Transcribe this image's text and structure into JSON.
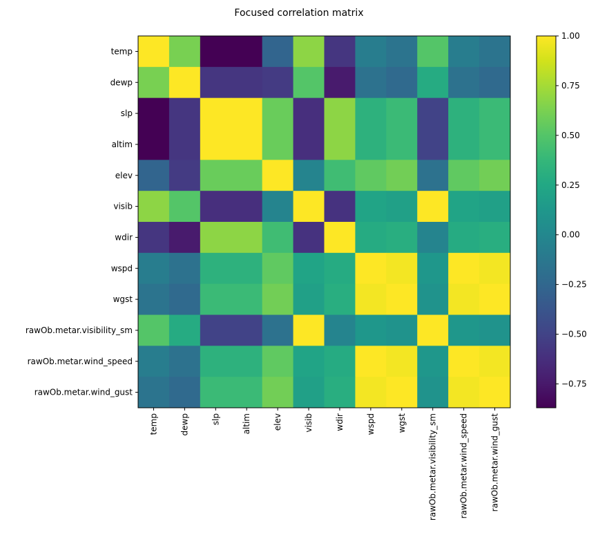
{
  "chart_data": {
    "type": "heatmap",
    "title": "Focused correlation matrix",
    "xlabel": "",
    "ylabel": "",
    "colormap": "viridis",
    "vmin": -0.87,
    "vmax": 1.0,
    "labels": [
      "temp",
      "dewp",
      "slp",
      "altim",
      "elev",
      "visib",
      "wdir",
      "wspd",
      "wgst",
      "rawOb.metar.visibility_sm",
      "rawOb.metar.wind_speed",
      "rawOb.metar.wind_gust"
    ],
    "matrix": [
      [
        1.0,
        0.62,
        -0.87,
        -0.87,
        -0.27,
        0.68,
        -0.58,
        -0.08,
        -0.15,
        0.5,
        -0.08,
        -0.15
      ],
      [
        0.62,
        1.0,
        -0.58,
        -0.58,
        -0.55,
        0.5,
        -0.74,
        -0.17,
        -0.23,
        0.28,
        -0.17,
        -0.23
      ],
      [
        -0.87,
        -0.58,
        1.0,
        1.0,
        0.57,
        -0.62,
        0.68,
        0.33,
        0.4,
        -0.5,
        0.33,
        0.4
      ],
      [
        -0.87,
        -0.58,
        1.0,
        1.0,
        0.57,
        -0.62,
        0.68,
        0.33,
        0.4,
        -0.5,
        0.33,
        0.4
      ],
      [
        -0.27,
        -0.55,
        0.57,
        0.57,
        1.0,
        -0.03,
        0.42,
        0.54,
        0.6,
        -0.17,
        0.54,
        0.6
      ],
      [
        0.68,
        0.5,
        -0.62,
        -0.62,
        -0.03,
        1.0,
        -0.6,
        0.22,
        0.19,
        1.0,
        0.22,
        0.19
      ],
      [
        -0.58,
        -0.74,
        0.68,
        0.68,
        0.42,
        -0.6,
        1.0,
        0.28,
        0.3,
        -0.03,
        0.28,
        0.3
      ],
      [
        -0.08,
        -0.17,
        0.33,
        0.33,
        0.54,
        0.22,
        0.28,
        1.0,
        0.97,
        0.12,
        1.0,
        0.97
      ],
      [
        -0.15,
        -0.23,
        0.4,
        0.4,
        0.6,
        0.19,
        0.3,
        0.97,
        1.0,
        0.09,
        0.97,
        1.0
      ],
      [
        0.5,
        0.28,
        -0.5,
        -0.5,
        -0.17,
        1.0,
        -0.03,
        0.12,
        0.09,
        1.0,
        0.12,
        0.09
      ],
      [
        -0.08,
        -0.17,
        0.33,
        0.33,
        0.54,
        0.22,
        0.28,
        1.0,
        0.97,
        0.12,
        1.0,
        0.97
      ],
      [
        -0.15,
        -0.23,
        0.4,
        0.4,
        0.6,
        0.19,
        0.3,
        0.97,
        1.0,
        0.09,
        0.97,
        1.0
      ]
    ],
    "colorbar": {
      "ticks": [
        1.0,
        0.75,
        0.5,
        0.25,
        0.0,
        -0.25,
        -0.5,
        -0.75
      ],
      "tick_labels": [
        "1.00",
        "0.75",
        "0.50",
        "0.25",
        "0.00",
        "−0.25",
        "−0.50",
        "−0.75"
      ],
      "placement": "right"
    },
    "grid": false
  }
}
